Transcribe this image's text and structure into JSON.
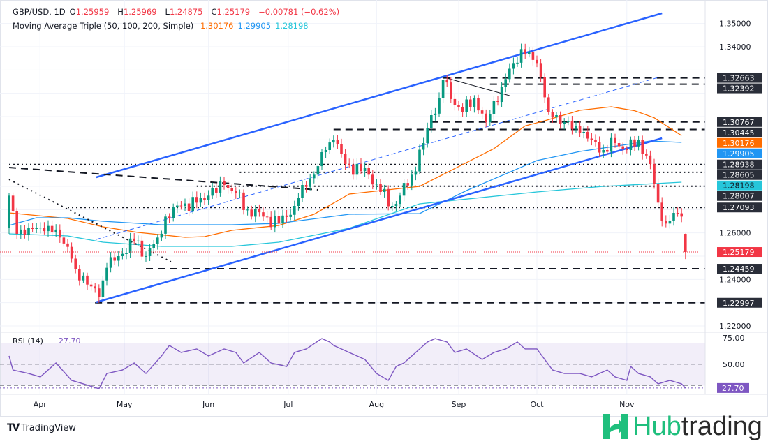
{
  "header": {
    "symbol": "GBP/USD, 1D",
    "open_label": "O",
    "open": "1.25959",
    "high_label": "H",
    "high": "1.25969",
    "low_label": "L",
    "low": "1.24875",
    "close_label": "C",
    "close": "1.25179",
    "change": "−0.00781 (−0.62%)",
    "ma_title": "Moving Average Triple (50, 100, 200, Simple)",
    "ma50": "1.30176",
    "ma100": "1.29905",
    "ma200": "1.28198"
  },
  "colors": {
    "up": "#089981",
    "down": "#f23645",
    "ma50": "#ff6d00",
    "ma100": "#2196f3",
    "ma200": "#26c6da",
    "trend": "#2962ff",
    "rsi": "#7e57c2",
    "badge_dark": "#2a2e39"
  },
  "chart_data": {
    "type": "candlestick",
    "title": "GBP/USD, 1D",
    "ylim": [
      1.215,
      1.355
    ],
    "bars": 174,
    "yticks": [
      "1.35000",
      "1.34000",
      "1.26000",
      "1.24000",
      "1.22000"
    ],
    "ytick_values": [
      1.35,
      1.34,
      1.26,
      1.24,
      1.22
    ],
    "xticks": [
      {
        "label": "Apr",
        "bar": 7.9
      },
      {
        "label": "May",
        "bar": 29.5
      },
      {
        "label": "Jun",
        "bar": 51
      },
      {
        "label": "Jul",
        "bar": 71.4
      },
      {
        "label": "Aug",
        "bar": 94
      },
      {
        "label": "Sep",
        "bar": 115
      },
      {
        "label": "Oct",
        "bar": 135
      },
      {
        "label": "Nov",
        "bar": 158
      }
    ],
    "close_path": [
      [
        0,
        1.276
      ],
      [
        2,
        1.2596
      ],
      [
        5,
        1.262
      ],
      [
        10,
        1.263
      ],
      [
        13,
        1.258
      ],
      [
        15,
        1.254
      ],
      [
        17,
        1.2446
      ],
      [
        21,
        1.237
      ],
      [
        23,
        1.2325
      ],
      [
        25,
        1.245
      ],
      [
        28,
        1.25
      ],
      [
        32,
        1.2566
      ],
      [
        35,
        1.25
      ],
      [
        38,
        1.258
      ],
      [
        40,
        1.267
      ],
      [
        44,
        1.2716
      ],
      [
        48,
        1.273
      ],
      [
        51,
        1.276
      ],
      [
        55,
        1.2806
      ],
      [
        58,
        1.277
      ],
      [
        61,
        1.27
      ],
      [
        65,
        1.267
      ],
      [
        69,
        1.264
      ],
      [
        73,
        1.2716
      ],
      [
        75,
        1.2806
      ],
      [
        78,
        1.285
      ],
      [
        81,
        1.2956
      ],
      [
        83,
        1.3
      ],
      [
        86,
        1.2896
      ],
      [
        90,
        1.2866
      ],
      [
        92,
        1.285
      ],
      [
        95,
        1.2776
      ],
      [
        98,
        1.2716
      ],
      [
        100,
        1.276
      ],
      [
        103,
        1.285
      ],
      [
        106,
        1.2986
      ],
      [
        108,
        1.3106
      ],
      [
        110,
        1.318
      ],
      [
        111,
        1.3256
      ],
      [
        114,
        1.315
      ],
      [
        116,
        1.312
      ],
      [
        119,
        1.318
      ],
      [
        122,
        1.3076
      ],
      [
        124,
        1.3166
      ],
      [
        126,
        1.3226
      ],
      [
        129,
        1.333
      ],
      [
        131,
        1.339
      ],
      [
        133,
        1.3376
      ],
      [
        135,
        1.333
      ],
      [
        136,
        1.327
      ],
      [
        138,
        1.312
      ],
      [
        140,
        1.3106
      ],
      [
        142,
        1.3076
      ],
      [
        146,
        1.303
      ],
      [
        149,
        1.3
      ],
      [
        152,
        1.2956
      ],
      [
        155,
        1.2986
      ],
      [
        158,
        1.2956
      ],
      [
        161,
        1.3
      ],
      [
        164,
        1.2896
      ],
      [
        166,
        1.273
      ],
      [
        168,
        1.264
      ],
      [
        170,
        1.2686
      ],
      [
        172,
        1.267
      ]
    ],
    "swing_lows": [
      [
        23,
        1.22997
      ]
    ],
    "last_bar": {
      "open": 1.25959,
      "high": 1.25969,
      "low": 1.24875,
      "close": 1.25179
    },
    "ma_series": [
      {
        "name": "SMA 50",
        "color_key": "ma50",
        "points": [
          [
            0,
            1.2686
          ],
          [
            15,
            1.2662
          ],
          [
            24,
            1.2626
          ],
          [
            33,
            1.2602
          ],
          [
            40,
            1.259
          ],
          [
            45,
            1.2581
          ],
          [
            50,
            1.2584
          ],
          [
            57,
            1.2611
          ],
          [
            69,
            1.2632
          ],
          [
            78,
            1.268
          ],
          [
            87,
            1.2767
          ],
          [
            105,
            1.28
          ],
          [
            111,
            1.2851
          ],
          [
            124,
            1.2962
          ],
          [
            132,
            1.306
          ],
          [
            137,
            1.3082
          ],
          [
            146,
            1.3127
          ],
          [
            154,
            1.3142
          ],
          [
            160,
            1.3125
          ],
          [
            165,
            1.3095
          ],
          [
            172,
            1.3018
          ]
        ]
      },
      {
        "name": "SMA 100",
        "color_key": "ma100",
        "points": [
          [
            0,
            1.2632
          ],
          [
            7,
            1.2665
          ],
          [
            15,
            1.2665
          ],
          [
            24,
            1.265
          ],
          [
            39,
            1.2635
          ],
          [
            57,
            1.2635
          ],
          [
            69,
            1.2641
          ],
          [
            87,
            1.268
          ],
          [
            105,
            1.2683
          ],
          [
            117,
            1.2782
          ],
          [
            135,
            1.2911
          ],
          [
            146,
            1.295
          ],
          [
            158,
            1.298
          ],
          [
            164,
            1.2995
          ],
          [
            172,
            1.2989
          ]
        ]
      },
      {
        "name": "SMA 200",
        "color_key": "ma200",
        "points": [
          [
            0,
            1.2596
          ],
          [
            15,
            1.2587
          ],
          [
            24,
            1.256
          ],
          [
            39,
            1.2542
          ],
          [
            57,
            1.2542
          ],
          [
            69,
            1.256
          ],
          [
            87,
            1.262
          ],
          [
            105,
            1.2725
          ],
          [
            135,
            1.2776
          ],
          [
            152,
            1.28
          ],
          [
            172,
            1.2818
          ]
        ]
      }
    ],
    "trendlines": [
      {
        "name": "channel-upper",
        "style": "solid",
        "from": [
          22.3,
          1.2839
        ],
        "to": [
          167,
          1.3544
        ]
      },
      {
        "name": "channel-lower",
        "style": "solid",
        "from": [
          22.3,
          1.2302
        ],
        "to": [
          167,
          1.3007
        ]
      },
      {
        "name": "channel-mid",
        "style": "thin-dashed",
        "from": [
          22.3,
          1.2572
        ],
        "to": [
          166,
          1.3268
        ]
      },
      {
        "name": "descending-dashed",
        "style": "black-dashed",
        "from": [
          0,
          1.2881
        ],
        "to": [
          79,
          1.2785
        ]
      },
      {
        "name": "descending-dotted",
        "style": "black-dotted",
        "from": [
          0,
          1.283
        ],
        "to": [
          41.4,
          1.2476
        ]
      },
      {
        "name": "pullback-line",
        "style": "thin-black",
        "from": [
          112,
          1.3265
        ],
        "to": [
          128,
          1.319
        ]
      }
    ],
    "levels": [
      {
        "price": 1.32663,
        "style": "dashed",
        "from_bar": 111
      },
      {
        "price": 1.32392,
        "style": "dashed",
        "from_bar": 123
      },
      {
        "price": 1.30767,
        "style": "dashed",
        "from_bar": 108
      },
      {
        "price": 1.30445,
        "style": "dashed",
        "from_bar": 83
      },
      {
        "price": 1.28938,
        "style": "dotted",
        "from_bar": 0
      },
      {
        "price": 1.28605,
        "style": "dotted",
        "from_bar": 59
      },
      {
        "price": 1.28007,
        "style": "dotted",
        "from_bar": 48
      },
      {
        "price": 1.27093,
        "style": "dotted",
        "from_bar": 15
      },
      {
        "price": 1.24459,
        "style": "dashed",
        "from_bar": 35
      },
      {
        "price": 1.22997,
        "style": "dashed",
        "from_bar": 22
      }
    ],
    "badges": [
      {
        "label": "1.32663",
        "price": 1.32663,
        "bg": "#2a2e39",
        "fg": "#ffffff"
      },
      {
        "label": "1.32392",
        "price": 1.32392,
        "bg": "#2a2e39",
        "fg": "#ffffff"
      },
      {
        "label": "1.30767",
        "price": 1.30767,
        "bg": "#2a2e39",
        "fg": "#ffffff"
      },
      {
        "label": "1.30445",
        "price": 1.30445,
        "bg": "#2a2e39",
        "fg": "#ffffff"
      },
      {
        "label": "1.30176",
        "price": 1.30176,
        "bg": "#ff6d00",
        "fg": "#ffffff"
      },
      {
        "label": "1.29905",
        "price": 1.29905,
        "bg": "#2196f3",
        "fg": "#ffffff"
      },
      {
        "label": "1.28938",
        "price": 1.28938,
        "bg": "#2a2e39",
        "fg": "#ffffff"
      },
      {
        "label": "1.28605",
        "price": 1.28605,
        "bg": "#2a2e39",
        "fg": "#ffffff"
      },
      {
        "label": "1.28198",
        "price": 1.28198,
        "bg": "#26c6da",
        "fg": "#131722"
      },
      {
        "label": "1.28007",
        "price": 1.28007,
        "bg": "#2a2e39",
        "fg": "#ffffff"
      },
      {
        "label": "1.27093",
        "price": 1.27093,
        "bg": "#2a2e39",
        "fg": "#ffffff"
      },
      {
        "label": "1.25179",
        "price": 1.25179,
        "bg": "#f23645",
        "fg": "#ffffff"
      },
      {
        "label": "1.24459",
        "price": 1.24459,
        "bg": "#2a2e39",
        "fg": "#ffffff"
      },
      {
        "label": "1.22997",
        "price": 1.22997,
        "bg": "#2a2e39",
        "fg": "#ffffff"
      }
    ],
    "rsi": {
      "title": "RSI (14)",
      "value": "27.70",
      "ylim": [
        20,
        80
      ],
      "band": [
        30,
        70
      ],
      "yticks": [
        "75.00",
        "50.00"
      ],
      "ytick_values": [
        75,
        50
      ],
      "points": [
        [
          0,
          57.9
        ],
        [
          1,
          44.7
        ],
        [
          5,
          41.4
        ],
        [
          8,
          38.2
        ],
        [
          12,
          51.3
        ],
        [
          16,
          34.9
        ],
        [
          19,
          31.6
        ],
        [
          23,
          27
        ],
        [
          25,
          41.4
        ],
        [
          29,
          44.7
        ],
        [
          32,
          51.3
        ],
        [
          35,
          41.4
        ],
        [
          39,
          57.9
        ],
        [
          41,
          67.8
        ],
        [
          44,
          61.2
        ],
        [
          48,
          64.5
        ],
        [
          51,
          57.9
        ],
        [
          55,
          64.5
        ],
        [
          58,
          61.2
        ],
        [
          60,
          51.3
        ],
        [
          64,
          61.2
        ],
        [
          67,
          51.3
        ],
        [
          71,
          48
        ],
        [
          73,
          61.2
        ],
        [
          76,
          64.5
        ],
        [
          80,
          74.3
        ],
        [
          82,
          71.1
        ],
        [
          83,
          67.8
        ],
        [
          87,
          61.2
        ],
        [
          91,
          54.6
        ],
        [
          94,
          41.4
        ],
        [
          97,
          34.9
        ],
        [
          99,
          48
        ],
        [
          101,
          51.3
        ],
        [
          105,
          64.5
        ],
        [
          107,
          71.1
        ],
        [
          109,
          74.3
        ],
        [
          112,
          71.1
        ],
        [
          114,
          61.2
        ],
        [
          117,
          64.5
        ],
        [
          121,
          54.6
        ],
        [
          124,
          61.2
        ],
        [
          127,
          64.5
        ],
        [
          130,
          71.1
        ],
        [
          132,
          64.5
        ],
        [
          135,
          64.5
        ],
        [
          139,
          44.7
        ],
        [
          142,
          41.4
        ],
        [
          146,
          41.4
        ],
        [
          149,
          38.2
        ],
        [
          153,
          44.7
        ],
        [
          155,
          38.2
        ],
        [
          158,
          34.9
        ],
        [
          159,
          48
        ],
        [
          161,
          41.4
        ],
        [
          164,
          38.2
        ],
        [
          166,
          31.6
        ],
        [
          169,
          34.9
        ],
        [
          172,
          31.6
        ],
        [
          173,
          27.7
        ]
      ]
    }
  },
  "footer": {
    "tradingview": "TradingView",
    "tv_mark": "TV",
    "brand_hub": "Hub",
    "brand_trading": "trading"
  }
}
